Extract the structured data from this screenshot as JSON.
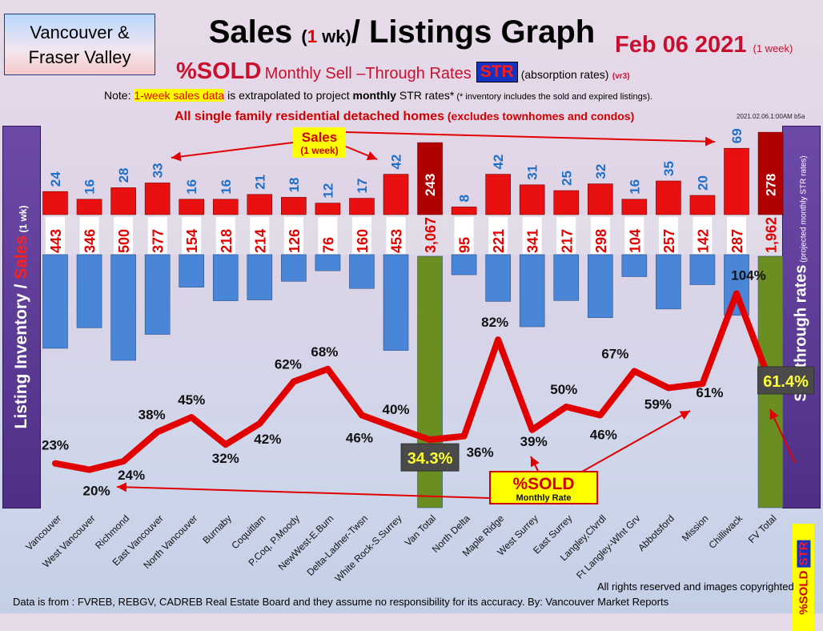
{
  "header": {
    "region_line1": "Vancouver &",
    "region_line2": "Fraser Valley",
    "title_part1": "Sales ",
    "title_paren_open": "(",
    "title_one": "1",
    "title_wk": " wk)",
    "title_part2": "/ Listings Graph",
    "date": "Feb 06  2021",
    "date_note": "(1 week)",
    "sold_label": "%SOLD",
    "monthly_text": "Monthly Sell –Through Rates",
    "str_badge": "STR",
    "absorption": "(absorption rates)",
    "version": "(vr3)",
    "note_prefix": "Note: ",
    "note_highlight": "1-week sales data",
    "note_mid": " is extrapolated to project ",
    "note_bold": "monthly",
    "note_end": " STR rates*",
    "note_small": " (* inventory includes the sold and expired listings).",
    "homes_main": "All single family residential detached homes",
    "homes_small": " (excludes townhomes and condos)",
    "timestamp": "2021.02.06.1:00AM b5a"
  },
  "side": {
    "left_inventory": "Listing Inventory / ",
    "left_sales": "Sales",
    "left_wk": " (1 wk)",
    "right_main": "Sell-through rates",
    "right_small": " (projected monthly STR rates)",
    "right_sold": "%SOLD",
    "right_str": "STR"
  },
  "annotations": {
    "sales_callout": "Sales",
    "sales_callout_sub": "(1 week)",
    "sold_callout": "%SOLD",
    "sold_callout_sub": "Monthly Rate"
  },
  "footer": {
    "rights": "All rights reserved and  images copyrighted",
    "source": "Data is from : FVREB, REBGV, CADREB Real Estate Board and they assume no responsibility for its accuracy. By: Vancouver Market Reports"
  },
  "colors": {
    "sales_bar": "#e81010",
    "total_sales_bar": "#b00000",
    "inventory_bar": "#4a86d8",
    "total_inventory_bar": "#6b8e23",
    "str_line": "#e00000",
    "sales_label": "#1f6fc8",
    "inventory_label": "#e00000"
  },
  "chart_data": {
    "type": "bar",
    "categories": [
      "Vancouver",
      "West Vancouver",
      "Richmond",
      "East Vancouver",
      "North Vancouver",
      "Burnaby",
      "Coquitlam",
      "P.Coq, P.Moody",
      "NewWest-E.Burn",
      "Delta-Ladner-Twsn",
      "White Rock-S.Surrey",
      "Van Total",
      "North Delta",
      "Maple Ridge",
      "West Surrey",
      "East Surrey",
      "Langley,Clvrdl",
      "Ft Langley-Wlnt Grv",
      "Abbotsford",
      "Mission",
      "Chilliwack",
      "FV Total"
    ],
    "sales_label_text": [
      "24",
      "16",
      "28",
      "33",
      "16",
      "16",
      "21",
      "18",
      "12",
      "17",
      "42",
      "243",
      "8",
      "42",
      "31",
      "25",
      "32",
      "16",
      "35",
      "20",
      "69",
      "278"
    ],
    "inventory_label_text": [
      "443",
      "346",
      "500",
      "377",
      "154",
      "218",
      "214",
      "126",
      "76",
      "160",
      "453",
      "3,067",
      "95",
      "221",
      "341",
      "217",
      "298",
      "104",
      "257",
      "142",
      "287",
      "1,962"
    ],
    "str_label_text": [
      "23%",
      "20%",
      "24%",
      "38%",
      "45%",
      "32%",
      "42%",
      "62%",
      "68%",
      "46%",
      "40%",
      "34.3%",
      "36%",
      "82%",
      "39%",
      "50%",
      "46%",
      "67%",
      "59%",
      "61%",
      "104%",
      "61.4%"
    ],
    "series": [
      {
        "name": "Sales",
        "values": [
          24,
          16,
          28,
          33,
          16,
          16,
          21,
          18,
          12,
          17,
          42,
          243,
          8,
          42,
          31,
          25,
          32,
          16,
          35,
          20,
          69,
          278
        ]
      },
      {
        "name": "Listing Inventory",
        "values": [
          443,
          346,
          500,
          377,
          154,
          218,
          214,
          126,
          76,
          160,
          453,
          3067,
          95,
          221,
          341,
          217,
          298,
          104,
          257,
          142,
          287,
          1962
        ]
      },
      {
        "name": "%SOLD Monthly Sell-Through Rates",
        "values": [
          23,
          20,
          24,
          38,
          45,
          32,
          42,
          62,
          68,
          46,
          40,
          34.3,
          36,
          82,
          39,
          50,
          46,
          67,
          59,
          61,
          104,
          61.4
        ]
      }
    ],
    "totals_index": [
      11,
      21
    ]
  }
}
